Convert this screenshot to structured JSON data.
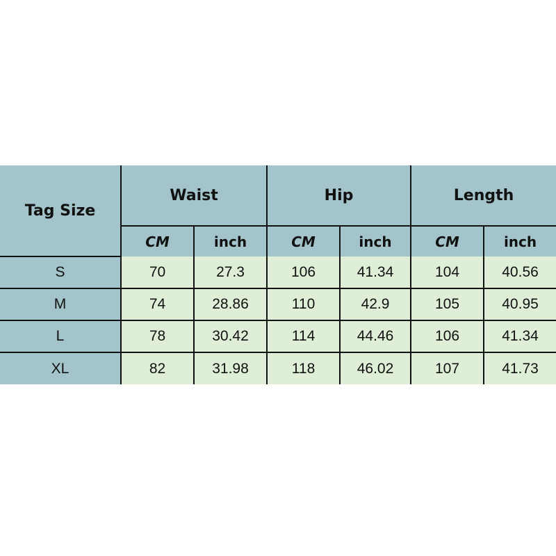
{
  "table": {
    "tag_header": "Tag Size",
    "groups": [
      "Waist",
      "Hip",
      "Length"
    ],
    "units": [
      "CM",
      "inch",
      "CM",
      "inch",
      "CM",
      "inch"
    ],
    "rows": [
      {
        "size": "S",
        "values": [
          "70",
          "27.3",
          "106",
          "41.34",
          "104",
          "40.56"
        ]
      },
      {
        "size": "M",
        "values": [
          "74",
          "28.86",
          "110",
          "42.9",
          "105",
          "40.95"
        ]
      },
      {
        "size": "L",
        "values": [
          "78",
          "30.42",
          "114",
          "44.46",
          "106",
          "41.34"
        ]
      },
      {
        "size": "XL",
        "values": [
          "82",
          "31.98",
          "118",
          "46.02",
          "107",
          "41.73"
        ]
      }
    ]
  },
  "colors": {
    "header_bg": "#a3c4ca",
    "cell_bg": "#dfeed7",
    "border": "#111111"
  }
}
